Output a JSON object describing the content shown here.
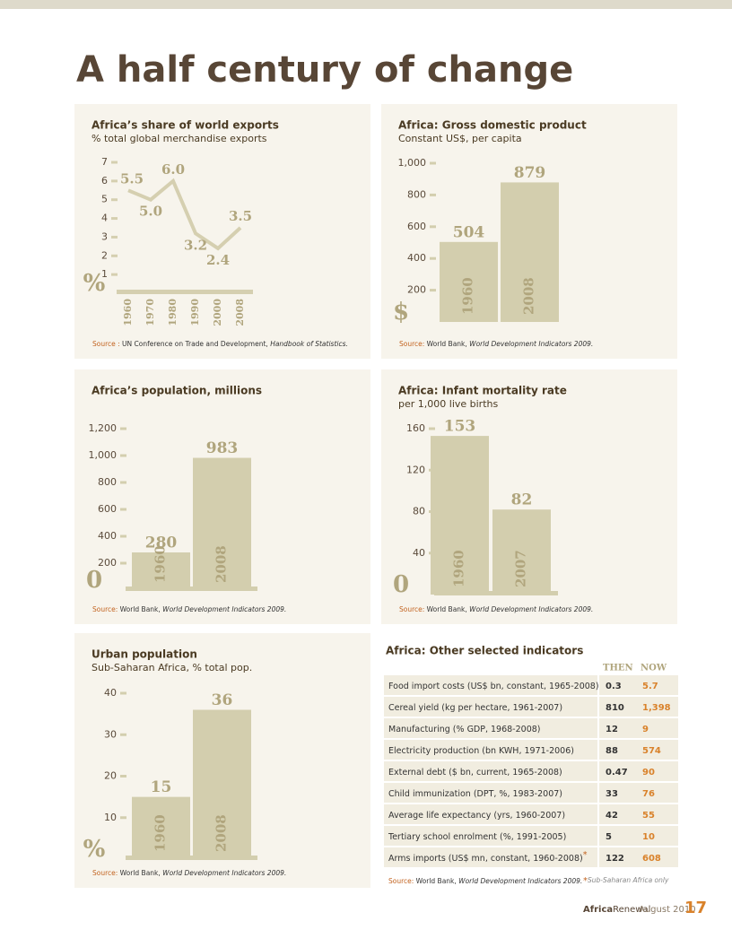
{
  "header": {
    "title": "A half century of change"
  },
  "chart_data": [
    {
      "type": "line",
      "title": "Africa’s share of world exports",
      "subtitle": "% total global merchandise exports",
      "categories": [
        "1960",
        "1970",
        "1980",
        "1990",
        "2000",
        "2008"
      ],
      "values": [
        5.5,
        5.0,
        6.0,
        3.2,
        2.4,
        3.5
      ],
      "value_labels": [
        "5.5",
        "5.0",
        "6.0",
        "3.2",
        "2.4",
        "3.5"
      ],
      "color": "#d5cfb0",
      "ylim": [
        0,
        7
      ],
      "yticks": [
        1,
        2,
        3,
        4,
        5,
        6,
        7
      ],
      "origin_label": "%",
      "source": {
        "label": "Source :",
        "text": " UN Conference on Trade and Development, ",
        "title": "Handbook of Statistics."
      }
    },
    {
      "type": "bar",
      "title": "Africa: Gross domestic product",
      "subtitle": "Constant US$, per capita",
      "categories": [
        "1960",
        "2008"
      ],
      "values": [
        504,
        879
      ],
      "color": "#d3ceae",
      "ylim": [
        0,
        1000
      ],
      "yticks": [
        200,
        400,
        600,
        800,
        {
          "value": 1000,
          "label": "1,000"
        }
      ],
      "origin_label": "$",
      "source": {
        "label": "Source:",
        "text": " World Bank, ",
        "title": "World Development Indicators 2009."
      }
    },
    {
      "type": "bar",
      "title": "Africa’s population, millions",
      "categories": [
        "1960",
        "2008"
      ],
      "values": [
        280,
        983
      ],
      "color": "#d3ceae",
      "ylim": [
        0,
        1200
      ],
      "yticks": [
        200,
        400,
        600,
        800,
        {
          "value": 1000,
          "label": "1,000"
        },
        {
          "value": 1200,
          "label": "1,200"
        }
      ],
      "origin_label": "0",
      "source": {
        "label": "Source:",
        "text": " World Bank, ",
        "title": "World Development Indicators 2009."
      }
    },
    {
      "type": "bar",
      "title": "Africa: Infant mortality rate",
      "subtitle": "per 1,000 live births",
      "categories": [
        "1960",
        "2007"
      ],
      "values": [
        153,
        82
      ],
      "color": "#d3ceae",
      "ylim": [
        0,
        160
      ],
      "yticks": [
        40,
        80,
        120,
        160
      ],
      "origin_label": "0",
      "source": {
        "label": "Source:",
        "text": " World Bank, ",
        "title": "World Development Indicators 2009."
      }
    },
    {
      "type": "bar",
      "title": "Urban population",
      "subtitle": "Sub-Saharan Africa, % total pop.",
      "categories": [
        "1960",
        "2008"
      ],
      "values": [
        15,
        36
      ],
      "color": "#d3ceae",
      "ylim": [
        0,
        40
      ],
      "yticks": [
        10,
        20,
        30,
        40
      ],
      "origin_label": "%",
      "source": {
        "label": "Source:",
        "text": " World Bank, ",
        "title": "World Development Indicators 2009."
      }
    }
  ],
  "table": {
    "title": "Africa: Other selected indicators",
    "columns": [
      "THEN",
      "NOW"
    ],
    "rows": [
      {
        "label": "Food import costs (US$ bn, constant, 1965-2008)",
        "then": "0.3",
        "now": "5.7"
      },
      {
        "label": "Cereal yield (kg per hectare, 1961-2007)",
        "then": "810",
        "now": "1,398"
      },
      {
        "label": "Manufacturing (% GDP, 1968-2008)",
        "then": "12",
        "now": "9"
      },
      {
        "label": "Electricity production (bn KWH, 1971-2006)",
        "then": "88",
        "now": "574"
      },
      {
        "label": "External debt ($ bn, current, 1965-2008)",
        "then": "0.47",
        "now": "90"
      },
      {
        "label": "Child immunization (DPT, %, 1983-2007)",
        "then": "33",
        "now": "76"
      },
      {
        "label": "Average life expectancy (yrs, 1960-2007)",
        "then": "42",
        "now": "55"
      },
      {
        "label": "Tertiary school enrolment (%, 1991-2005)",
        "then": "5",
        "now": "10"
      },
      {
        "label": "Arms imports (US$ mn, constant, 1960-2008)",
        "note": "*",
        "then": "122",
        "now": "608"
      }
    ],
    "source": {
      "label": "Source:",
      "text": " World Bank, ",
      "title": "World Development Indicators 2009."
    },
    "footnote": {
      "mark": "*",
      "text": "Sub-Saharan Africa only"
    }
  },
  "footer": {
    "brand_a": "Africa",
    "brand_b": "Renewal",
    "date": "August 2010",
    "page": "17"
  }
}
